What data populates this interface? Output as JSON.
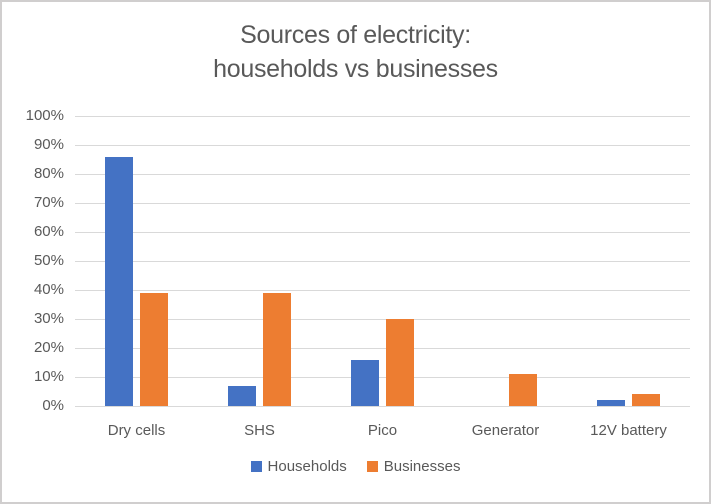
{
  "chart_data": {
    "type": "bar",
    "title": "Sources of electricity: households vs businesses",
    "title_lines": [
      "Sources of electricity:",
      "households vs businesses"
    ],
    "categories": [
      "Dry cells",
      "SHS",
      "Pico",
      "Generator",
      "12V battery"
    ],
    "series": [
      {
        "name": "Households",
        "color": "#4472C4",
        "values": [
          86,
          7,
          16,
          0,
          2
        ]
      },
      {
        "name": "Businesses",
        "color": "#ED7D31",
        "values": [
          39,
          39,
          30,
          11,
          4
        ]
      }
    ],
    "xlabel": "",
    "ylabel": "",
    "ylim": [
      0,
      100
    ],
    "y_ticks": [
      "0%",
      "10%",
      "20%",
      "30%",
      "40%",
      "50%",
      "60%",
      "70%",
      "80%",
      "90%",
      "100%"
    ],
    "grid": true,
    "legend_position": "bottom",
    "colors": {
      "text": "#595959",
      "gridline": "#D9D9D9",
      "chart_border": "#D0CECE",
      "background": "#FFFFFF"
    }
  }
}
